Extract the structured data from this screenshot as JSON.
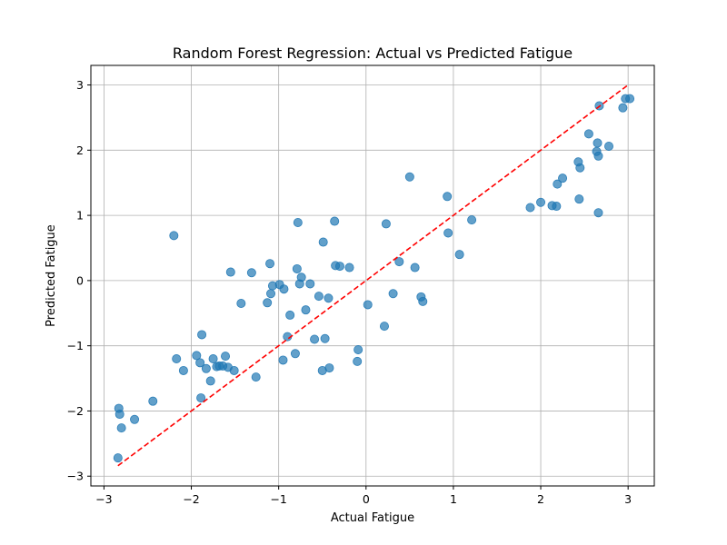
{
  "chart_data": {
    "type": "scatter",
    "title": "Random Forest Regression: Actual vs Predicted Fatigue",
    "xlabel": "Actual Fatigue",
    "ylabel": "Predicted Fatigue",
    "xlim": [
      -3.15,
      3.3
    ],
    "ylim": [
      -3.15,
      3.3
    ],
    "xticks": [
      -3,
      -2,
      -1,
      0,
      1,
      2,
      3
    ],
    "yticks": [
      -3,
      -2,
      -1,
      0,
      1,
      2,
      3
    ],
    "xtick_labels": [
      "−3",
      "−2",
      "−1",
      "0",
      "1",
      "2",
      "3"
    ],
    "ytick_labels": [
      "−3",
      "−2",
      "−1",
      "0",
      "1",
      "2",
      "3"
    ],
    "grid": true,
    "point_color": "#1f77b4",
    "reference_line": {
      "from": [
        -2.84,
        -2.84
      ],
      "to": [
        3.0,
        3.0
      ],
      "color": "#ff0000",
      "style": "dashed"
    },
    "series": [
      {
        "points": [
          [
            -2.84,
            -2.72
          ],
          [
            -2.83,
            -1.96
          ],
          [
            -2.82,
            -2.05
          ],
          [
            -2.8,
            -2.26
          ],
          [
            -2.65,
            -2.13
          ],
          [
            -2.44,
            -1.85
          ],
          [
            -2.2,
            0.69
          ],
          [
            -2.17,
            -1.2
          ],
          [
            -2.09,
            -1.38
          ],
          [
            -1.94,
            -1.15
          ],
          [
            -1.9,
            -1.26
          ],
          [
            -1.88,
            -0.83
          ],
          [
            -1.89,
            -1.8
          ],
          [
            -1.83,
            -1.35
          ],
          [
            -1.78,
            -1.54
          ],
          [
            -1.75,
            -1.2
          ],
          [
            -1.71,
            -1.32
          ],
          [
            -1.68,
            -1.31
          ],
          [
            -1.64,
            -1.31
          ],
          [
            -1.61,
            -1.16
          ],
          [
            -1.58,
            -1.33
          ],
          [
            -1.55,
            0.13
          ],
          [
            -1.51,
            -1.38
          ],
          [
            -1.43,
            -0.35
          ],
          [
            -1.31,
            0.12
          ],
          [
            -1.26,
            -1.48
          ],
          [
            -1.13,
            -0.34
          ],
          [
            -1.1,
            0.26
          ],
          [
            -1.09,
            -0.2
          ],
          [
            -1.07,
            -0.08
          ],
          [
            -0.99,
            -0.06
          ],
          [
            -0.95,
            -1.22
          ],
          [
            -0.94,
            -0.13
          ],
          [
            -0.9,
            -0.86
          ],
          [
            -0.87,
            -0.53
          ],
          [
            -0.81,
            -1.12
          ],
          [
            -0.79,
            0.18
          ],
          [
            -0.78,
            0.89
          ],
          [
            -0.76,
            -0.05
          ],
          [
            -0.74,
            0.05
          ],
          [
            -0.69,
            -0.45
          ],
          [
            -0.64,
            -0.05
          ],
          [
            -0.59,
            -0.9
          ],
          [
            -0.54,
            -0.24
          ],
          [
            -0.5,
            -1.38
          ],
          [
            -0.49,
            0.59
          ],
          [
            -0.47,
            -0.89
          ],
          [
            -0.43,
            -0.27
          ],
          [
            -0.42,
            -1.34
          ],
          [
            -0.36,
            0.91
          ],
          [
            -0.35,
            0.23
          ],
          [
            -0.3,
            0.22
          ],
          [
            -0.19,
            0.2
          ],
          [
            -0.1,
            -1.24
          ],
          [
            -0.09,
            -1.06
          ],
          [
            0.02,
            -0.37
          ],
          [
            0.21,
            -0.7
          ],
          [
            0.23,
            0.87
          ],
          [
            0.31,
            -0.2
          ],
          [
            0.38,
            0.29
          ],
          [
            0.5,
            1.59
          ],
          [
            0.56,
            0.2
          ],
          [
            0.63,
            -0.25
          ],
          [
            0.65,
            -0.32
          ],
          [
            0.93,
            1.29
          ],
          [
            0.94,
            0.73
          ],
          [
            1.07,
            0.4
          ],
          [
            1.21,
            0.93
          ],
          [
            1.88,
            1.12
          ],
          [
            2.0,
            1.2
          ],
          [
            2.13,
            1.15
          ],
          [
            2.18,
            1.14
          ],
          [
            2.19,
            1.48
          ],
          [
            2.25,
            1.57
          ],
          [
            2.43,
            1.82
          ],
          [
            2.44,
            1.25
          ],
          [
            2.45,
            1.73
          ],
          [
            2.55,
            2.25
          ],
          [
            2.64,
            1.98
          ],
          [
            2.65,
            2.11
          ],
          [
            2.66,
            1.04
          ],
          [
            2.66,
            1.91
          ],
          [
            2.67,
            2.68
          ],
          [
            2.78,
            2.06
          ],
          [
            2.94,
            2.65
          ],
          [
            2.97,
            2.79
          ],
          [
            3.02,
            2.79
          ]
        ]
      }
    ]
  }
}
